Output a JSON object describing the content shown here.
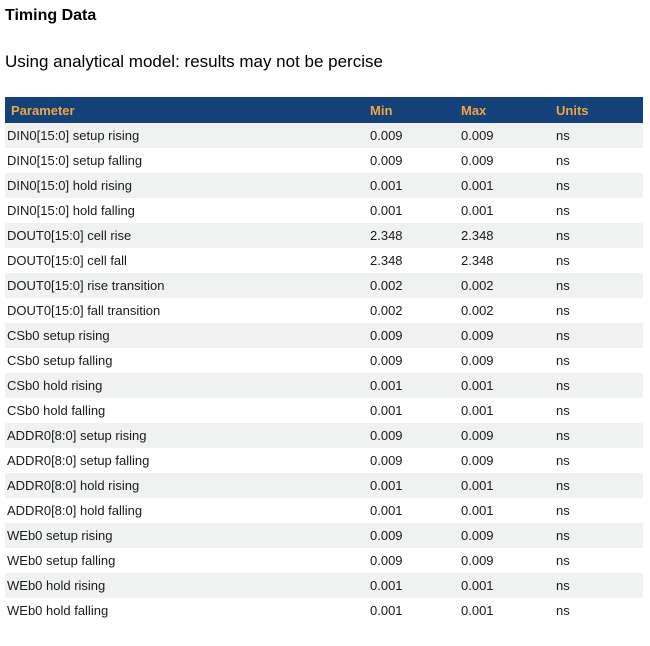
{
  "page": {
    "title": "Timing Data",
    "subtitle": "Using analytical model: results may not be percise"
  },
  "table": {
    "columns": [
      "Parameter",
      "Min",
      "Max",
      "Units"
    ],
    "rows": [
      {
        "parameter": "DIN0[15:0] setup rising",
        "min": "0.009",
        "max": "0.009",
        "units": "ns"
      },
      {
        "parameter": "DIN0[15:0] setup falling",
        "min": "0.009",
        "max": "0.009",
        "units": "ns"
      },
      {
        "parameter": "DIN0[15:0] hold rising",
        "min": "0.001",
        "max": "0.001",
        "units": "ns"
      },
      {
        "parameter": "DIN0[15:0] hold falling",
        "min": "0.001",
        "max": "0.001",
        "units": "ns"
      },
      {
        "parameter": "DOUT0[15:0] cell rise",
        "min": "2.348",
        "max": "2.348",
        "units": "ns"
      },
      {
        "parameter": "DOUT0[15:0] cell fall",
        "min": "2.348",
        "max": "2.348",
        "units": "ns"
      },
      {
        "parameter": "DOUT0[15:0] rise transition",
        "min": "0.002",
        "max": "0.002",
        "units": "ns"
      },
      {
        "parameter": "DOUT0[15:0] fall transition",
        "min": "0.002",
        "max": "0.002",
        "units": "ns"
      },
      {
        "parameter": "CSb0 setup rising",
        "min": "0.009",
        "max": "0.009",
        "units": "ns"
      },
      {
        "parameter": "CSb0 setup falling",
        "min": "0.009",
        "max": "0.009",
        "units": "ns"
      },
      {
        "parameter": "CSb0 hold rising",
        "min": "0.001",
        "max": "0.001",
        "units": "ns"
      },
      {
        "parameter": "CSb0 hold falling",
        "min": "0.001",
        "max": "0.001",
        "units": "ns"
      },
      {
        "parameter": "ADDR0[8:0] setup rising",
        "min": "0.009",
        "max": "0.009",
        "units": "ns"
      },
      {
        "parameter": "ADDR0[8:0] setup falling",
        "min": "0.009",
        "max": "0.009",
        "units": "ns"
      },
      {
        "parameter": "ADDR0[8:0] hold rising",
        "min": "0.001",
        "max": "0.001",
        "units": "ns"
      },
      {
        "parameter": "ADDR0[8:0] hold falling",
        "min": "0.001",
        "max": "0.001",
        "units": "ns"
      },
      {
        "parameter": "WEb0 setup rising",
        "min": "0.009",
        "max": "0.009",
        "units": "ns"
      },
      {
        "parameter": "WEb0 setup falling",
        "min": "0.009",
        "max": "0.009",
        "units": "ns"
      },
      {
        "parameter": "WEb0 hold rising",
        "min": "0.001",
        "max": "0.001",
        "units": "ns"
      },
      {
        "parameter": "WEb0 hold falling",
        "min": "0.001",
        "max": "0.001",
        "units": "ns"
      }
    ]
  },
  "colors": {
    "header_bg": "#134179",
    "header_text": "#F0A63C",
    "row_stripe": "#F0F1F1",
    "body_text": "#1A1A1A"
  }
}
